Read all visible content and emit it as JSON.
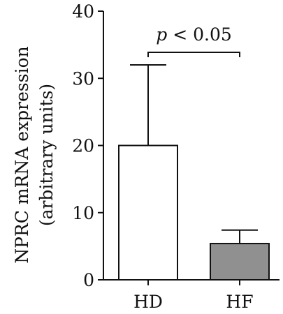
{
  "chart_data": {
    "type": "bar",
    "categories": [
      "HD",
      "HF"
    ],
    "values": [
      20,
      5.4
    ],
    "error_upper": [
      32,
      7.4
    ],
    "ylabel_line1": "NPRC mRNA expression",
    "ylabel_line2": "(arbitrary units)",
    "xlabel": "",
    "ylim": [
      0,
      40
    ],
    "yticks": [
      0,
      10,
      20,
      30,
      40
    ],
    "grid": false,
    "legend": "none",
    "bar_colors": [
      "#ffffff",
      "#909090"
    ],
    "annotation": {
      "italic": "p",
      "rest": " < 0.05"
    }
  }
}
